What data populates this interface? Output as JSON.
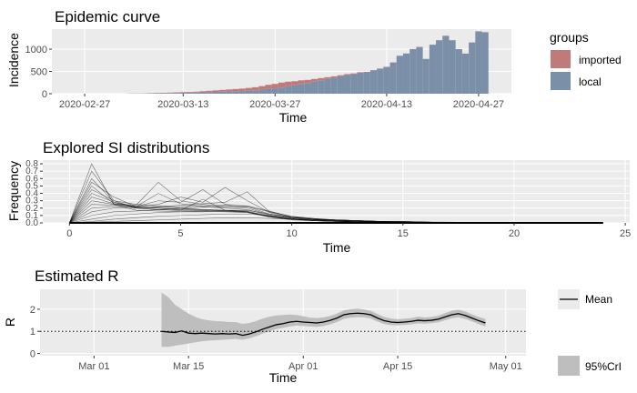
{
  "chart_data": [
    {
      "type": "bar",
      "title": "Epidemic curve",
      "xlabel": "Time",
      "ylabel": "Incidence",
      "xlim": [
        "2020-02-22",
        "2020-05-02"
      ],
      "ylim": [
        0,
        1450
      ],
      "x_ticks": [
        {
          "date": "2020-02-27",
          "label": "2020-02-27"
        },
        {
          "date": "2020-03-13",
          "label": "2020-03-13"
        },
        {
          "date": "2020-03-27",
          "label": "2020-03-27"
        },
        {
          "date": "2020-04-13",
          "label": "2020-04-13"
        },
        {
          "date": "2020-04-27",
          "label": "2020-04-27"
        }
      ],
      "y_ticks": [
        0,
        500,
        1000
      ],
      "legend_title": "groups",
      "legend_position": "right",
      "series": [
        {
          "name": "imported",
          "color": "#c17a7a"
        },
        {
          "name": "local",
          "color": "#7b90a8"
        }
      ],
      "x": [
        "2020-03-05",
        "2020-03-06",
        "2020-03-07",
        "2020-03-08",
        "2020-03-09",
        "2020-03-10",
        "2020-03-11",
        "2020-03-12",
        "2020-03-13",
        "2020-03-14",
        "2020-03-15",
        "2020-03-16",
        "2020-03-17",
        "2020-03-18",
        "2020-03-19",
        "2020-03-20",
        "2020-03-21",
        "2020-03-22",
        "2020-03-23",
        "2020-03-24",
        "2020-03-25",
        "2020-03-26",
        "2020-03-27",
        "2020-03-28",
        "2020-03-29",
        "2020-03-30",
        "2020-03-31",
        "2020-04-01",
        "2020-04-02",
        "2020-04-03",
        "2020-04-04",
        "2020-04-05",
        "2020-04-06",
        "2020-04-07",
        "2020-04-08",
        "2020-04-09",
        "2020-04-10",
        "2020-04-11",
        "2020-04-12",
        "2020-04-13",
        "2020-04-14",
        "2020-04-15",
        "2020-04-16",
        "2020-04-17",
        "2020-04-18",
        "2020-04-19",
        "2020-04-20",
        "2020-04-21",
        "2020-04-22",
        "2020-04-23",
        "2020-04-24",
        "2020-04-25",
        "2020-04-26",
        "2020-04-27",
        "2020-04-28"
      ],
      "imported": [
        2,
        3,
        3,
        5,
        6,
        8,
        10,
        12,
        15,
        18,
        20,
        25,
        30,
        35,
        40,
        45,
        50,
        55,
        60,
        70,
        80,
        90,
        100,
        110,
        100,
        90,
        80,
        70,
        60,
        50,
        40,
        30,
        25,
        20,
        15,
        12,
        10,
        8,
        6,
        5,
        4,
        3,
        3,
        2,
        2,
        2,
        1,
        1,
        1,
        1,
        1,
        1,
        1,
        1,
        1
      ],
      "local": [
        3,
        3,
        5,
        8,
        10,
        12,
        15,
        18,
        20,
        20,
        25,
        30,
        35,
        40,
        45,
        50,
        55,
        60,
        70,
        75,
        90,
        110,
        120,
        140,
        170,
        190,
        220,
        240,
        270,
        300,
        330,
        360,
        390,
        420,
        440,
        470,
        480,
        520,
        560,
        600,
        700,
        850,
        900,
        1000,
        1050,
        780,
        1100,
        1200,
        1300,
        1200,
        1000,
        900,
        1150,
        1400,
        1380
      ]
    },
    {
      "type": "line",
      "title": "Explored SI distributions",
      "xlabel": "Time",
      "ylabel": "Frequency",
      "xlim": [
        -1.2,
        25.2
      ],
      "ylim": [
        0,
        0.85
      ],
      "x_ticks": [
        0,
        5,
        10,
        15,
        20,
        25
      ],
      "y_ticks": [
        0.0,
        0.1,
        0.2,
        0.3,
        0.4,
        0.5,
        0.6,
        0.7,
        0.8
      ],
      "y_tick_labels": [
        "0.0",
        "0.1",
        "0.2",
        "0.3",
        "0.4",
        "0.5",
        "0.6",
        "0.7",
        "0.8"
      ],
      "line_color": "#000000",
      "series": [
        {
          "values": [
            0,
            0.8,
            0.25,
            0.17,
            0.16,
            0.15,
            0.15,
            0.16,
            0.15,
            0.08,
            0.04,
            0.03,
            0.02,
            0.02,
            0.01,
            0.01,
            0.01,
            0.005,
            0.005,
            0.003,
            0.002,
            0.002,
            0.001,
            0.001,
            0
          ]
        },
        {
          "values": [
            0,
            0.7,
            0.3,
            0.2,
            0.18,
            0.17,
            0.16,
            0.15,
            0.14,
            0.08,
            0.05,
            0.03,
            0.02,
            0.01,
            0.01,
            0.01,
            0.005,
            0.005,
            0.003,
            0.002,
            0.001,
            0.001,
            0.001,
            0,
            0
          ]
        },
        {
          "values": [
            0,
            0.55,
            0.35,
            0.22,
            0.2,
            0.18,
            0.17,
            0.16,
            0.14,
            0.09,
            0.05,
            0.03,
            0.02,
            0.02,
            0.01,
            0.01,
            0.01,
            0.005,
            0.003,
            0.002,
            0.001,
            0.001,
            0,
            0,
            0
          ]
        },
        {
          "values": [
            0,
            0.45,
            0.3,
            0.25,
            0.23,
            0.2,
            0.18,
            0.17,
            0.15,
            0.09,
            0.05,
            0.04,
            0.03,
            0.02,
            0.01,
            0.01,
            0.01,
            0.005,
            0.003,
            0.002,
            0.001,
            0.001,
            0,
            0,
            0
          ]
        },
        {
          "values": [
            0,
            0.4,
            0.28,
            0.22,
            0.4,
            0.26,
            0.22,
            0.2,
            0.18,
            0.1,
            0.06,
            0.04,
            0.03,
            0.02,
            0.01,
            0.01,
            0.005,
            0.005,
            0.003,
            0.002,
            0.001,
            0.001,
            0,
            0,
            0
          ]
        },
        {
          "values": [
            0,
            0.35,
            0.26,
            0.24,
            0.55,
            0.3,
            0.25,
            0.22,
            0.2,
            0.11,
            0.06,
            0.04,
            0.03,
            0.02,
            0.01,
            0.01,
            0.005,
            0.004,
            0.003,
            0.002,
            0.001,
            0.001,
            0,
            0,
            0
          ]
        },
        {
          "values": [
            0,
            0.3,
            0.25,
            0.22,
            0.3,
            0.28,
            0.45,
            0.25,
            0.22,
            0.12,
            0.07,
            0.05,
            0.03,
            0.02,
            0.02,
            0.01,
            0.01,
            0.005,
            0.003,
            0.002,
            0.001,
            0.001,
            0,
            0,
            0
          ]
        },
        {
          "values": [
            0,
            0.25,
            0.24,
            0.22,
            0.25,
            0.35,
            0.28,
            0.48,
            0.3,
            0.14,
            0.07,
            0.05,
            0.03,
            0.02,
            0.02,
            0.01,
            0.01,
            0.005,
            0.003,
            0.002,
            0.001,
            0.001,
            0,
            0,
            0
          ]
        },
        {
          "values": [
            0,
            0.2,
            0.22,
            0.21,
            0.22,
            0.24,
            0.26,
            0.28,
            0.42,
            0.15,
            0.08,
            0.05,
            0.04,
            0.03,
            0.02,
            0.01,
            0.01,
            0.006,
            0.004,
            0.002,
            0.001,
            0.001,
            0,
            0,
            0
          ]
        },
        {
          "values": [
            0,
            0.15,
            0.2,
            0.2,
            0.21,
            0.22,
            0.23,
            0.24,
            0.23,
            0.16,
            0.08,
            0.05,
            0.04,
            0.03,
            0.02,
            0.01,
            0.01,
            0.006,
            0.004,
            0.002,
            0.001,
            0.001,
            0,
            0,
            0
          ]
        },
        {
          "values": [
            0,
            0.1,
            0.15,
            0.16,
            0.18,
            0.2,
            0.21,
            0.22,
            0.22,
            0.15,
            0.09,
            0.06,
            0.04,
            0.03,
            0.02,
            0.02,
            0.01,
            0.007,
            0.004,
            0.003,
            0.002,
            0.001,
            0,
            0,
            0
          ]
        },
        {
          "values": [
            0,
            0.05,
            0.1,
            0.12,
            0.14,
            0.15,
            0.16,
            0.17,
            0.17,
            0.12,
            0.08,
            0.06,
            0.04,
            0.03,
            0.02,
            0.02,
            0.01,
            0.008,
            0.005,
            0.003,
            0.002,
            0.001,
            0.001,
            0,
            0
          ]
        },
        {
          "values": [
            0,
            0.02,
            0.05,
            0.07,
            0.09,
            0.1,
            0.11,
            0.12,
            0.12,
            0.1,
            0.07,
            0.05,
            0.04,
            0.03,
            0.02,
            0.02,
            0.01,
            0.01,
            0.006,
            0.004,
            0.002,
            0.001,
            0.001,
            0.001,
            0
          ]
        },
        {
          "values": [
            0,
            0.01,
            0.02,
            0.03,
            0.04,
            0.05,
            0.06,
            0.07,
            0.07,
            0.06,
            0.05,
            0.04,
            0.03,
            0.02,
            0.02,
            0.01,
            0.01,
            0.008,
            0.006,
            0.004,
            0.003,
            0.002,
            0.001,
            0.001,
            0
          ]
        },
        {
          "values": [
            0,
            0.6,
            0.28,
            0.2,
            0.18,
            0.17,
            0.32,
            0.17,
            0.15,
            0.08,
            0.05,
            0.03,
            0.02,
            0.01,
            0.01,
            0.005,
            0.004,
            0.003,
            0.002,
            0.001,
            0.001,
            0,
            0,
            0,
            0
          ]
        },
        {
          "values": [
            0,
            0.5,
            0.26,
            0.21,
            0.2,
            0.19,
            0.18,
            0.17,
            0.16,
            0.09,
            0.05,
            0.03,
            0.02,
            0.01,
            0.01,
            0.005,
            0.004,
            0.003,
            0.002,
            0.001,
            0.001,
            0,
            0,
            0,
            0
          ]
        }
      ]
    },
    {
      "type": "area",
      "title": "Estimated R",
      "xlabel": "Time",
      "ylabel": "R",
      "xlim": [
        "2020-02-22",
        "2020-05-04"
      ],
      "ylim": [
        -0.1,
        2.9
      ],
      "x_ticks": [
        {
          "date": "2020-03-01",
          "label": "Mar 01"
        },
        {
          "date": "2020-03-15",
          "label": "Mar 15"
        },
        {
          "date": "2020-04-01",
          "label": "Apr 01"
        },
        {
          "date": "2020-04-15",
          "label": "Apr 15"
        },
        {
          "date": "2020-05-01",
          "label": "May 01"
        }
      ],
      "y_ticks": [
        0,
        1,
        2
      ],
      "reference_line": 1,
      "legend_position": "right",
      "series": [
        {
          "name": "Mean",
          "color": "#000000"
        },
        {
          "name": "95%CrI",
          "color": "#bebebe"
        }
      ],
      "x": [
        "2020-03-11",
        "2020-03-12",
        "2020-03-13",
        "2020-03-14",
        "2020-03-15",
        "2020-03-16",
        "2020-03-17",
        "2020-03-18",
        "2020-03-19",
        "2020-03-20",
        "2020-03-21",
        "2020-03-22",
        "2020-03-23",
        "2020-03-24",
        "2020-03-25",
        "2020-03-26",
        "2020-03-27",
        "2020-03-28",
        "2020-03-29",
        "2020-03-30",
        "2020-03-31",
        "2020-04-01",
        "2020-04-02",
        "2020-04-03",
        "2020-04-04",
        "2020-04-05",
        "2020-04-06",
        "2020-04-07",
        "2020-04-08",
        "2020-04-09",
        "2020-04-10",
        "2020-04-11",
        "2020-04-12",
        "2020-04-13",
        "2020-04-14",
        "2020-04-15",
        "2020-04-16",
        "2020-04-17",
        "2020-04-18",
        "2020-04-19",
        "2020-04-20",
        "2020-04-21",
        "2020-04-22",
        "2020-04-23",
        "2020-04-24",
        "2020-04-25",
        "2020-04-26",
        "2020-04-27",
        "2020-04-28"
      ],
      "mean": [
        1.0,
        0.97,
        0.95,
        1.02,
        0.92,
        0.9,
        0.92,
        0.9,
        0.88,
        0.9,
        0.88,
        0.9,
        0.82,
        0.88,
        0.98,
        1.1,
        1.2,
        1.3,
        1.35,
        1.42,
        1.45,
        1.42,
        1.4,
        1.38,
        1.42,
        1.5,
        1.6,
        1.75,
        1.8,
        1.82,
        1.8,
        1.75,
        1.6,
        1.48,
        1.42,
        1.4,
        1.42,
        1.45,
        1.5,
        1.48,
        1.5,
        1.55,
        1.65,
        1.75,
        1.8,
        1.72,
        1.6,
        1.48,
        1.38
      ],
      "lower": [
        0.3,
        0.3,
        0.35,
        0.4,
        0.45,
        0.5,
        0.55,
        0.58,
        0.6,
        0.62,
        0.64,
        0.66,
        0.62,
        0.68,
        0.78,
        0.9,
        1.0,
        1.1,
        1.16,
        1.22,
        1.26,
        1.24,
        1.22,
        1.2,
        1.24,
        1.32,
        1.42,
        1.56,
        1.62,
        1.64,
        1.63,
        1.58,
        1.44,
        1.33,
        1.28,
        1.27,
        1.29,
        1.32,
        1.36,
        1.35,
        1.37,
        1.41,
        1.5,
        1.59,
        1.63,
        1.56,
        1.45,
        1.33,
        1.22
      ],
      "upper": [
        2.75,
        2.55,
        2.2,
        2.0,
        1.8,
        1.65,
        1.55,
        1.5,
        1.46,
        1.45,
        1.42,
        1.42,
        1.34,
        1.38,
        1.46,
        1.58,
        1.66,
        1.72,
        1.74,
        1.76,
        1.74,
        1.68,
        1.62,
        1.6,
        1.63,
        1.7,
        1.8,
        1.95,
        2.0,
        2.02,
        1.99,
        1.93,
        1.78,
        1.65,
        1.58,
        1.55,
        1.57,
        1.6,
        1.66,
        1.63,
        1.65,
        1.71,
        1.82,
        1.93,
        1.98,
        1.9,
        1.77,
        1.65,
        1.56
      ]
    }
  ]
}
